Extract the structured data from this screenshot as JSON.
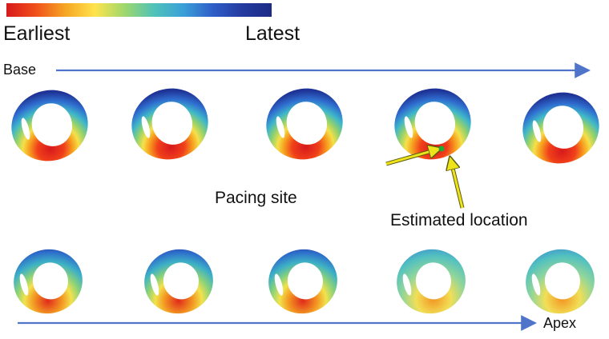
{
  "colorbar": {
    "stops": [
      "#d7191c",
      "#f0501a",
      "#f5a623",
      "#ffe34d",
      "#9fd86b",
      "#4fc3b8",
      "#3aa0d8",
      "#2f5ec8",
      "#233b9f",
      "#1d2a86"
    ],
    "min_label": "Earliest",
    "max_label": "Latest"
  },
  "axes": {
    "base_label": "Base",
    "apex_label": "Apex",
    "arrow_color": "#4f74c9"
  },
  "annotations": {
    "pacing_label": "Pacing site",
    "estimated_label": "Estimated location",
    "pointer_color": "#ece31a",
    "marker_color": "#1faa3a"
  },
  "slices": {
    "count_per_row": 5,
    "rows": 2
  }
}
